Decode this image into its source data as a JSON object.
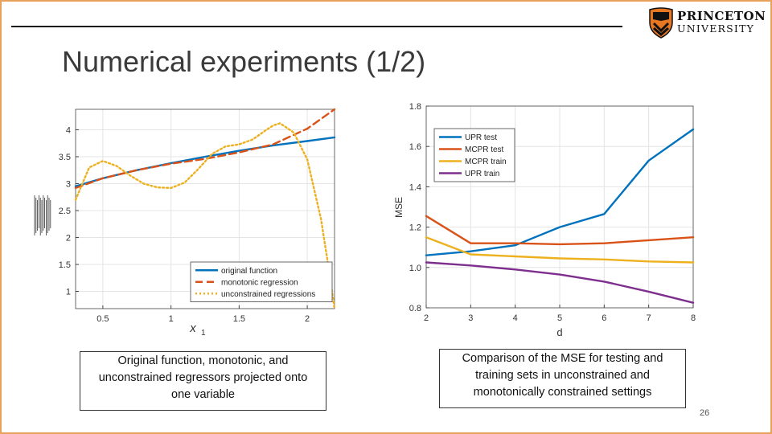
{
  "slide": {
    "title": "Numerical experiments (1/2)",
    "page_number": "26",
    "logo": {
      "line1": "PRINCETON",
      "line2": "UNIVERSITY"
    },
    "caption_left": "Original function, monotonic, and unconstrained regressors projected onto one variable",
    "caption_right": "Comparison of the MSE for testing and training sets in unconstrained and monotonically constrained settings",
    "colors": {
      "border": "#e8a15a",
      "blue": "#0072bd",
      "orange": "#d95319",
      "yellow": "#edb120",
      "purple": "#7e2f8e"
    }
  },
  "chart_data": [
    {
      "type": "line",
      "title": "",
      "xlabel": "x1",
      "ylabel": "",
      "xlim": [
        0.3,
        2.2
      ],
      "ylim": [
        0.68,
        4.38
      ],
      "xticks": [
        0.5,
        1,
        1.5,
        2
      ],
      "yticks": [
        1,
        1.5,
        2,
        2.5,
        3,
        3.5,
        4
      ],
      "legend_position": "bottom-right",
      "series": [
        {
          "name": "original function",
          "color": "#0072bd",
          "style": "solid",
          "x": [
            0.3,
            0.5,
            0.75,
            1.0,
            1.25,
            1.5,
            1.75,
            2.0,
            2.2
          ],
          "y": [
            2.95,
            3.1,
            3.25,
            3.38,
            3.5,
            3.61,
            3.71,
            3.79,
            3.86
          ]
        },
        {
          "name": "monotonic regression",
          "color": "#d95319",
          "style": "dashed",
          "x": [
            0.3,
            0.5,
            0.75,
            1.0,
            1.25,
            1.5,
            1.75,
            2.0,
            2.2
          ],
          "y": [
            2.92,
            3.1,
            3.25,
            3.37,
            3.46,
            3.58,
            3.73,
            4.02,
            4.38
          ]
        },
        {
          "name": "unconstrained regressions",
          "color": "#edb120",
          "style": "dotted",
          "x": [
            0.3,
            0.4,
            0.5,
            0.6,
            0.7,
            0.8,
            0.9,
            1.0,
            1.1,
            1.2,
            1.3,
            1.4,
            1.5,
            1.6,
            1.7,
            1.75,
            1.8,
            1.9,
            2.0,
            2.1,
            2.15,
            2.2
          ],
          "y": [
            2.7,
            3.3,
            3.42,
            3.33,
            3.15,
            3.0,
            2.93,
            2.92,
            3.02,
            3.27,
            3.55,
            3.69,
            3.73,
            3.82,
            4.0,
            4.08,
            4.12,
            3.95,
            3.45,
            2.35,
            1.55,
            0.68
          ]
        }
      ]
    },
    {
      "type": "line",
      "title": "",
      "xlabel": "d",
      "ylabel": "MSE",
      "xlim": [
        2,
        8
      ],
      "ylim": [
        0.8,
        1.8
      ],
      "xticks": [
        2,
        3,
        4,
        5,
        6,
        7,
        8
      ],
      "yticks": [
        0.8,
        1,
        1.2,
        1.4,
        1.6,
        1.8
      ],
      "legend_position": "top-left",
      "series": [
        {
          "name": "UPR test",
          "color": "#0072bd",
          "x": [
            2,
            3,
            4,
            5,
            6,
            7,
            8
          ],
          "y": [
            1.06,
            1.08,
            1.11,
            1.2,
            1.265,
            1.53,
            1.685
          ]
        },
        {
          "name": "MCPR test",
          "color": "#d95319",
          "x": [
            2,
            3,
            4,
            5,
            6,
            7,
            8
          ],
          "y": [
            1.255,
            1.12,
            1.12,
            1.115,
            1.12,
            1.135,
            1.15
          ]
        },
        {
          "name": "MCPR train",
          "color": "#edb120",
          "x": [
            2,
            3,
            4,
            5,
            6,
            7,
            8
          ],
          "y": [
            1.15,
            1.065,
            1.055,
            1.045,
            1.04,
            1.03,
            1.025
          ]
        },
        {
          "name": "UPR train",
          "color": "#7e2f8e",
          "x": [
            2,
            3,
            4,
            5,
            6,
            7,
            8
          ],
          "y": [
            1.025,
            1.01,
            0.99,
            0.965,
            0.93,
            0.88,
            0.825
          ]
        }
      ]
    }
  ]
}
